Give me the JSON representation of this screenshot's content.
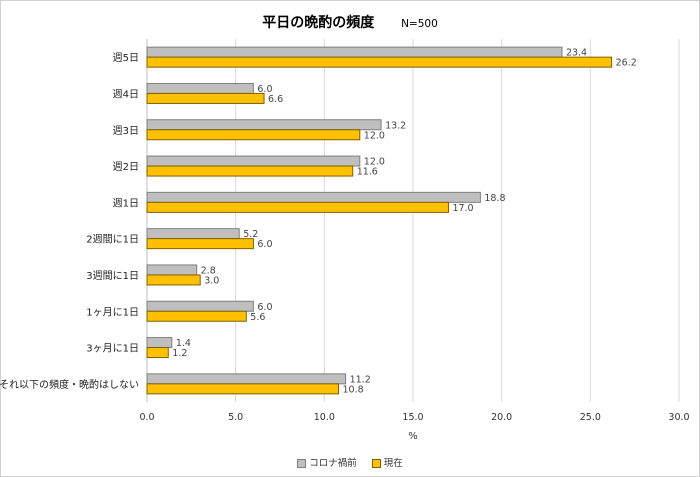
{
  "title": "平日の晩酌の頻度",
  "note": "N=500",
  "chart_data": {
    "type": "bar",
    "orientation": "horizontal",
    "title": "平日の晩酌の頻度",
    "subtitle": "N=500",
    "xlabel": "%",
    "ylabel": "",
    "xlim": [
      0,
      30
    ],
    "x_ticks": [
      "0.0",
      "5.0",
      "10.0",
      "15.0",
      "20.0",
      "25.0",
      "30.0"
    ],
    "grid": true,
    "legend_position": "bottom",
    "categories": [
      "週5日",
      "週4日",
      "週3日",
      "週2日",
      "週1日",
      "2週間に1日",
      "3週間に1日",
      "1ヶ月に1日",
      "3ヶ月に1日",
      "それ以下の頻度・晩酌はしない"
    ],
    "series": [
      {
        "name": "コロナ禍前",
        "color": "#bfbfbf",
        "values": [
          23.4,
          6.0,
          13.2,
          12.0,
          18.8,
          5.2,
          2.8,
          6.0,
          1.4,
          11.2
        ],
        "labels": [
          "23.4",
          "6.0",
          "13.2",
          "12.0",
          "18.8",
          "5.2",
          "2.8",
          "6.0",
          "1.4",
          "11.2"
        ]
      },
      {
        "name": "現在",
        "color": "#ffc000",
        "values": [
          26.2,
          6.6,
          12.0,
          11.6,
          17.0,
          6.0,
          3.0,
          5.6,
          1.2,
          10.8
        ],
        "labels": [
          "26.2",
          "6.6",
          "12.0",
          "11.6",
          "17.0",
          "6.0",
          "3.0",
          "5.6",
          "1.2",
          "10.8"
        ]
      }
    ]
  }
}
